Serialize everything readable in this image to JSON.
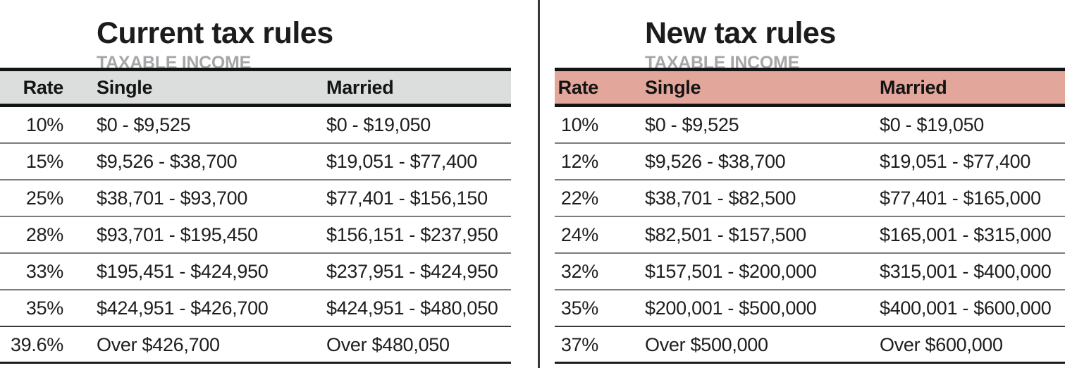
{
  "colors": {
    "current_header_bg": "#dcdedd",
    "new_header_bg": "#e2a79a",
    "title_black": "#1c1c1c",
    "subtitle_gray": "#a4a6a9",
    "separator_gray": "#7c7c7c",
    "heavy_rule_black": "#141414"
  },
  "chart_data": [
    {
      "type": "table",
      "title": "Current tax rules",
      "subtitle": "TAXABLE INCOME",
      "header_bg": "#dcdedd",
      "columns": [
        "Rate",
        "Single",
        "Married"
      ],
      "rows": [
        [
          "10%",
          "$0 - $9,525",
          "$0 - $19,050"
        ],
        [
          "15%",
          "$9,526 - $38,700",
          "$19,051 - $77,400"
        ],
        [
          "25%",
          "$38,701 - $93,700",
          "$77,401 - $156,150"
        ],
        [
          "28%",
          "$93,701 - $195,450",
          "$156,151 - $237,950"
        ],
        [
          "33%",
          "$195,451 - $424,950",
          "$237,951 - $424,950"
        ],
        [
          "35%",
          "$424,951 - $426,700",
          "$424,951 - $480,050"
        ],
        [
          "39.6%",
          "Over $426,700",
          "Over $480,050"
        ]
      ]
    },
    {
      "type": "table",
      "title": "New tax rules",
      "subtitle": "TAXABLE INCOME",
      "header_bg": "#e2a79a",
      "columns": [
        "Rate",
        "Single",
        "Married"
      ],
      "rows": [
        [
          "10%",
          "$0 - $9,525",
          "$0 - $19,050"
        ],
        [
          "12%",
          "$9,526 - $38,700",
          "$19,051 - $77,400"
        ],
        [
          "22%",
          "$38,701 - $82,500",
          "$77,401 - $165,000"
        ],
        [
          "24%",
          "$82,501 - $157,500",
          "$165,001 - $315,000"
        ],
        [
          "32%",
          "$157,501 - $200,000",
          "$315,001 - $400,000"
        ],
        [
          "35%",
          "$200,001 - $500,000",
          "$400,001 - $600,000"
        ],
        [
          "37%",
          "Over $500,000",
          "Over $600,000"
        ]
      ]
    }
  ]
}
